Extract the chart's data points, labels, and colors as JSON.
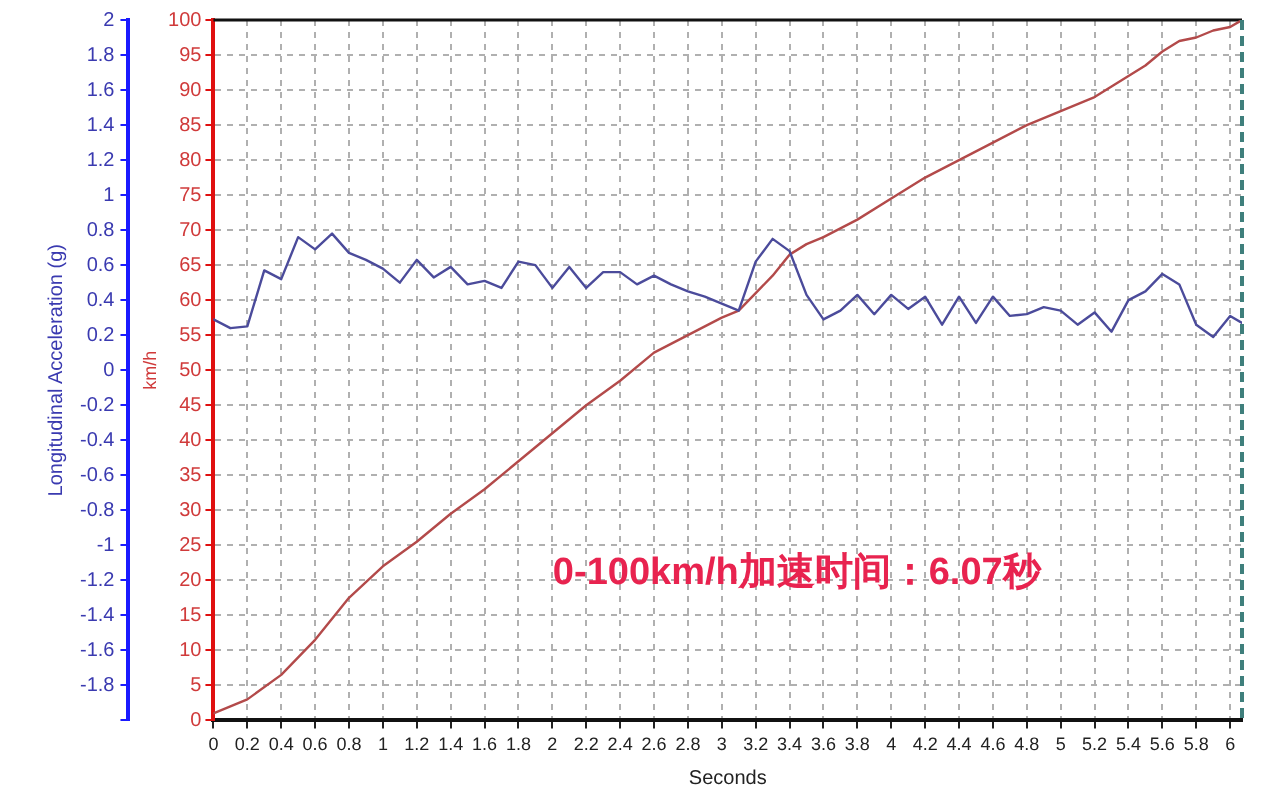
{
  "chart_data": {
    "type": "line",
    "xlabel": "Seconds",
    "ylabel": "Longitudinal Acceleration (g)",
    "y2label": "km/h",
    "annotations": [
      "0-100km/h加速时间：6.07秒"
    ],
    "series": [
      {
        "color": "#4b4b9b",
        "x": [
          0,
          0.1,
          0.2,
          0.3,
          0.4,
          0.5,
          0.6,
          0.7,
          0.8,
          0.9,
          1.0,
          1.1,
          1.2,
          1.3,
          1.4,
          1.5,
          1.6,
          1.7,
          1.8,
          1.9,
          2.0,
          2.1,
          2.2,
          2.3,
          2.4,
          2.5,
          2.6,
          2.7,
          2.8,
          2.9,
          3.0,
          3.1,
          3.2,
          3.3,
          3.4,
          3.5,
          3.6,
          3.7,
          3.8,
          3.9,
          4.0,
          4.1,
          4.2,
          4.3,
          4.4,
          4.5,
          4.6,
          4.7,
          4.8,
          4.9,
          5.0,
          5.1,
          5.2,
          5.3,
          5.4,
          5.5,
          5.6,
          5.7,
          5.8,
          5.9,
          6.0,
          6.07
        ],
        "values": [
          0.29,
          0.24,
          0.25,
          0.57,
          0.52,
          0.76,
          0.69,
          0.78,
          0.67,
          0.63,
          0.58,
          0.5,
          0.63,
          0.53,
          0.59,
          0.49,
          0.51,
          0.47,
          0.62,
          0.6,
          0.47,
          0.59,
          0.47,
          0.56,
          0.56,
          0.49,
          0.54,
          0.49,
          0.45,
          0.42,
          0.38,
          0.34,
          0.62,
          0.75,
          0.68,
          0.43,
          0.29,
          0.34,
          0.43,
          0.32,
          0.43,
          0.35,
          0.42,
          0.26,
          0.42,
          0.27,
          0.42,
          0.31,
          0.32,
          0.36,
          0.34,
          0.26,
          0.33,
          0.22,
          0.4,
          0.45,
          0.55,
          0.49,
          0.26,
          0.19,
          0.31,
          0.27
        ]
      },
      {
        "color": "#b34a4a",
        "axis": "y2",
        "x": [
          0,
          0.2,
          0.4,
          0.6,
          0.8,
          1.0,
          1.2,
          1.4,
          1.6,
          1.8,
          2.0,
          2.2,
          2.4,
          2.6,
          2.8,
          3.0,
          3.1,
          3.2,
          3.3,
          3.4,
          3.5,
          3.6,
          3.8,
          4.0,
          4.2,
          4.4,
          4.6,
          4.8,
          5.0,
          5.2,
          5.3,
          5.4,
          5.5,
          5.6,
          5.7,
          5.8,
          5.9,
          6.0,
          6.07
        ],
        "values": [
          1,
          3,
          6.5,
          11.5,
          17.5,
          22,
          25.5,
          29.5,
          33,
          37,
          41,
          45,
          48.5,
          52.5,
          55,
          57.5,
          58.5,
          61,
          63.5,
          66.5,
          68,
          69,
          71.5,
          74.5,
          77.5,
          80,
          82.5,
          85,
          87,
          89,
          90.5,
          92,
          93.5,
          95.5,
          97,
          97.5,
          98.5,
          99,
          100
        ]
      }
    ],
    "xlim": [
      0,
      6.07
    ],
    "xticks": [
      0,
      0.2,
      0.4,
      0.6,
      0.8,
      1,
      1.2,
      1.4,
      1.6,
      1.8,
      2,
      2.2,
      2.4,
      2.6,
      2.8,
      3,
      3.2,
      3.4,
      3.6,
      3.8,
      4,
      4.2,
      4.4,
      4.6,
      4.8,
      5,
      5.2,
      5.4,
      5.6,
      5.8,
      6
    ],
    "ylim": [
      -2,
      2
    ],
    "yticks": [
      {
        "value": -2,
        "label": null
      },
      -1.8,
      -1.6,
      -1.4,
      -1.2,
      -1,
      -0.8,
      -0.6,
      -0.4,
      -0.2,
      0,
      0.2,
      0.4,
      0.6,
      0.8,
      1,
      1.2,
      1.4,
      1.6,
      1.8,
      2
    ],
    "y2lim": [
      0,
      100
    ],
    "y2ticks": [
      0,
      5,
      10,
      15,
      20,
      25,
      30,
      35,
      40,
      45,
      50,
      55,
      60,
      65,
      70,
      75,
      80,
      85,
      90,
      95,
      100
    ],
    "ref_lines": [
      {
        "axis": "x",
        "value": 6.07,
        "color": "#3f7f7c",
        "line_style": "dashed"
      }
    ],
    "grid": true,
    "legend": false,
    "marker": "none",
    "line_style": "solid"
  }
}
